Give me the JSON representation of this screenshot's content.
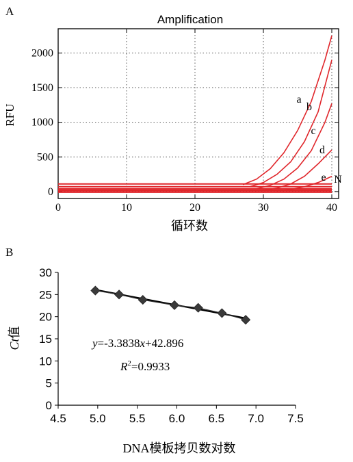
{
  "chart_data": [
    {
      "panel_label": "A",
      "type": "line",
      "title": "Amplification",
      "xlabel": "循环数",
      "ylabel": "RFU",
      "xlim": [
        0,
        41
      ],
      "ylim": [
        -100,
        2350
      ],
      "xticks": [
        0,
        10,
        20,
        30,
        40
      ],
      "yticks": [
        0,
        500,
        1000,
        1500,
        2000
      ],
      "grid": true,
      "series": [
        {
          "name": "a",
          "x": [
            27,
            29,
            31,
            33,
            35,
            37,
            39,
            40
          ],
          "values": [
            100,
            180,
            330,
            560,
            880,
            1300,
            1900,
            2250
          ]
        },
        {
          "name": "b",
          "x": [
            28,
            30,
            32,
            34,
            36,
            38,
            40
          ],
          "values": [
            70,
            130,
            250,
            430,
            720,
            1150,
            1900
          ]
        },
        {
          "name": "c",
          "x": [
            29,
            31,
            33,
            35,
            37,
            39,
            40
          ],
          "values": [
            40,
            90,
            180,
            340,
            590,
            1000,
            1270
          ]
        },
        {
          "name": "d",
          "x": [
            30,
            32,
            34,
            36,
            38,
            40
          ],
          "values": [
            20,
            50,
            110,
            220,
            400,
            600
          ]
        },
        {
          "name": "e",
          "x": [
            32,
            34,
            36,
            38,
            40
          ],
          "values": [
            10,
            30,
            70,
            130,
            220
          ]
        },
        {
          "name": "N",
          "x": [
            0,
            40
          ],
          "values": [
            40,
            40
          ]
        }
      ],
      "baselines": [
        110,
        70,
        40,
        20,
        10,
        -10
      ]
    },
    {
      "panel_label": "B",
      "type": "scatter",
      "xlabel": "DNA模板拷贝数对数",
      "ylabel_parts": {
        "italic": "Ct",
        "plain": "值"
      },
      "xlim": [
        4.5,
        7.5
      ],
      "ylim": [
        0,
        30
      ],
      "xticks": [
        "4.5",
        "5.0",
        "5.5",
        "6.0",
        "6.5",
        "7.0",
        "7.5"
      ],
      "yticks": [
        "0",
        "5",
        "10",
        "15",
        "20",
        "25",
        "30"
      ],
      "grid": false,
      "x": [
        4.97,
        5.27,
        5.57,
        5.97,
        6.27,
        6.57,
        6.87
      ],
      "values": [
        25.9,
        25.0,
        23.8,
        22.6,
        22.0,
        20.8,
        19.3
      ],
      "fit": {
        "slope": -3.3838,
        "intercept": 42.896
      },
      "equation": {
        "y": "y",
        "rest1": "=-3.3838",
        "x": "x",
        "rest2": "+42.896"
      },
      "r2": {
        "R": "R",
        "sup": "2",
        "rest": "=0.9933"
      }
    }
  ]
}
